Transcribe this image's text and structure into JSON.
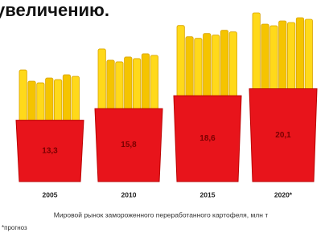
{
  "chart_data": {
    "type": "pictogram-bar",
    "title": "увеличению.",
    "categories": [
      "2005",
      "2010",
      "2015",
      "2020*"
    ],
    "values": [
      13.3,
      15.8,
      18.6,
      20.1
    ],
    "value_labels": [
      "13,3",
      "15,8",
      "18,6",
      "20,1"
    ],
    "color": "#e8141b",
    "caption": "Мировой рынок замороженного переработанного картофеля, млн т",
    "footnote": "*прогноз"
  }
}
